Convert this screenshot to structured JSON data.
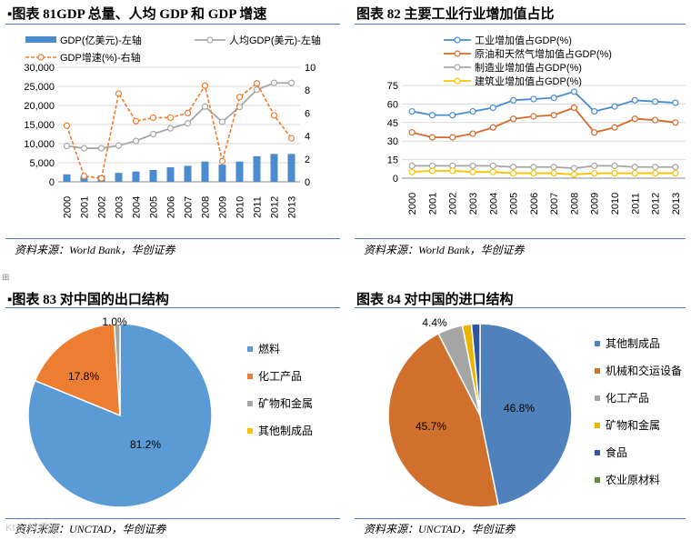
{
  "panels": {
    "p81": {
      "title": "▪图表 81GDP 总量、人均 GDP 和 GDP 增速",
      "source": "资料来源：World Bank，华创证券"
    },
    "p82": {
      "title": "图表 82 主要工业行业增加值占比",
      "source": "资料来源：World Bank，华创证券"
    },
    "p83": {
      "title": "▪图表 83 对中国的出口结构",
      "source": "资料来源：UNCTAD，华创证券"
    },
    "p84": {
      "title": "图表 84 对中国的进口结构",
      "source": "资料来源：UNCTAD，华创证券"
    }
  },
  "watermark": "Kt 分析师网",
  "colors": {
    "rule": "#4f81bd",
    "bar": "#4a8ccd",
    "gdp_pc": "#a6a6a6",
    "growth": "#ed7d31"
  },
  "chart_data": [
    {
      "id": "fig81",
      "type": "bar+line",
      "categories": [
        "2000",
        "2001",
        "2002",
        "2003",
        "2004",
        "2005",
        "2006",
        "2007",
        "2008",
        "2009",
        "2010",
        "2011",
        "2012",
        "2013"
      ],
      "series": [
        {
          "name": "GDP(亿美元)-左轴",
          "kind": "bar",
          "axis": "left",
          "color": "#4a8ccd",
          "values": [
            1950,
            1500,
            1600,
            2350,
            2700,
            3100,
            3800,
            4200,
            5300,
            4500,
            5300,
            6700,
            7300,
            7300
          ]
        },
        {
          "name": "人均GDP(美元)-左轴",
          "kind": "line",
          "axis": "left",
          "color": "#a6a6a6",
          "marker": "circle-open",
          "values": [
            9400,
            8800,
            8800,
            9500,
            10700,
            12500,
            14000,
            15300,
            19700,
            15700,
            19600,
            24100,
            25900,
            25900
          ]
        },
        {
          "name": "GDP增速(%)-右轴",
          "kind": "line",
          "axis": "right",
          "color": "#ed7d31",
          "dashed": true,
          "marker": "circle-open",
          "values": [
            4.9,
            0.5,
            0.3,
            7.7,
            5.3,
            5.6,
            5.6,
            6.0,
            8.4,
            1.8,
            7.4,
            8.6,
            5.8,
            3.8
          ]
        }
      ],
      "yleft": {
        "ticks": [
          "0",
          "5,000",
          "10,000",
          "15,000",
          "20,000",
          "25,000",
          "30,000"
        ],
        "min": 0,
        "max": 30000
      },
      "yright": {
        "ticks": [
          "0",
          "2",
          "4",
          "6",
          "8",
          "10"
        ],
        "min": 0,
        "max": 10
      }
    },
    {
      "id": "fig82",
      "type": "line",
      "categories": [
        "2000",
        "2001",
        "2002",
        "2003",
        "2004",
        "2005",
        "2006",
        "2007",
        "2008",
        "2009",
        "2010",
        "2011",
        "2012",
        "2013"
      ],
      "series": [
        {
          "name": "工业增加值占GDP(%)",
          "color": "#4a8ccd",
          "values": [
            54,
            51,
            51,
            54,
            57,
            63,
            64,
            65,
            70,
            54,
            58,
            63,
            62,
            61
          ]
        },
        {
          "name": "原油和天然气增加值占GDP(%)",
          "color": "#d46b2a",
          "values": [
            37,
            33,
            33,
            36,
            41,
            48,
            50,
            51,
            57,
            37,
            41,
            48,
            47,
            45
          ]
        },
        {
          "name": "制造业增加值占GDP(%)",
          "color": "#a6a6a6",
          "values": [
            10,
            10,
            10,
            10,
            10,
            9,
            9,
            9,
            8,
            10,
            10,
            9,
            9,
            9
          ]
        },
        {
          "name": "建筑业增加值占GDP(%)",
          "color": "#f5c400",
          "values": [
            5,
            6,
            6,
            5,
            5,
            4,
            4,
            4,
            3,
            4,
            4,
            4,
            4,
            4
          ]
        }
      ],
      "y": {
        "ticks": [
          "0",
          "15",
          "30",
          "45",
          "60",
          "75"
        ],
        "min": 0,
        "max": 75
      }
    },
    {
      "id": "fig83",
      "type": "pie",
      "slices": [
        {
          "name": "燃料",
          "value": 81.2,
          "label": "81.2%",
          "color": "#5b9bd5"
        },
        {
          "name": "化工产品",
          "value": 17.8,
          "label": "17.8%",
          "color": "#ed7d31"
        },
        {
          "name": "矿物和金属",
          "value": 1.0,
          "label": "1.0%",
          "color": "#a5a5a5"
        },
        {
          "name": "其他制成品",
          "value": 0.0,
          "label": "",
          "color": "#ffc000"
        }
      ]
    },
    {
      "id": "fig84",
      "type": "pie",
      "slices": [
        {
          "name": "其他制成品",
          "value": 46.8,
          "label": "46.8%",
          "color": "#4f81bd"
        },
        {
          "name": "机械和交运设备",
          "value": 45.7,
          "label": "45.7%",
          "color": "#d1702c"
        },
        {
          "name": "化工产品",
          "value": 4.4,
          "label": "4.4%",
          "color": "#a5a5a5"
        },
        {
          "name": "矿物和金属",
          "value": 1.6,
          "label": "",
          "color": "#e8b400"
        },
        {
          "name": "食品",
          "value": 1.5,
          "label": "",
          "color": "#2f55a4"
        },
        {
          "name": "农业原材料",
          "value": 0.0,
          "label": "",
          "color": "#5e8f32"
        }
      ]
    }
  ]
}
